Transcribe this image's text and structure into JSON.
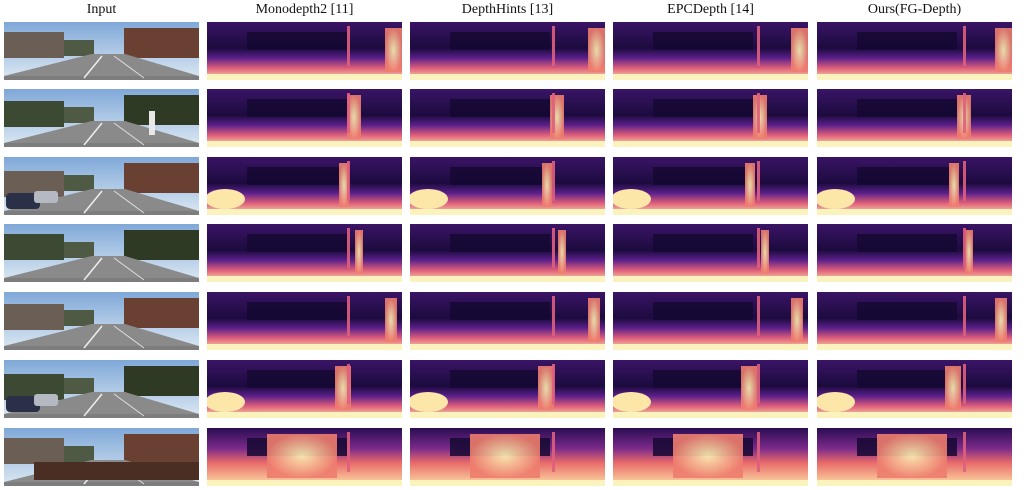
{
  "columns": [
    {
      "key": "input",
      "label": "Input"
    },
    {
      "key": "monodepth2",
      "label": "Monodepth2 [11]"
    },
    {
      "key": "depthhints",
      "label": "DepthHints [13]"
    },
    {
      "key": "epcdepth",
      "label": "EPCDepth [14]"
    },
    {
      "key": "ours",
      "label": "Ours(FG-Depth)"
    }
  ],
  "rows": [
    {
      "scene": "street-houses-wall-right"
    },
    {
      "scene": "street-cyclist-pole"
    },
    {
      "scene": "street-parked-cars-trees"
    },
    {
      "scene": "intersection-white-building"
    },
    {
      "scene": "road-railway-pole"
    },
    {
      "scene": "street-parked-cars-shadows"
    },
    {
      "scene": "sidewalk-fence-bushes"
    }
  ],
  "colors": {
    "depth_near": "#fcf8b8",
    "depth_mid": "#e95a6a",
    "depth_far": "#1b0b3c",
    "sky": "#8fb8de",
    "road": "#7a7a7a"
  }
}
